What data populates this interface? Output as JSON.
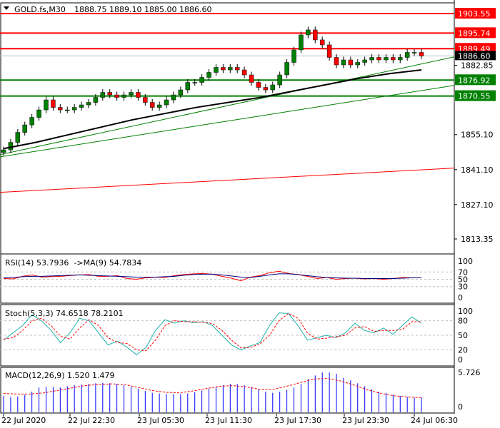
{
  "header": {
    "symbol": "GOLD.fs,M30",
    "ohlc": "1888.75 1889.10 1885.00 1886.60"
  },
  "colors": {
    "up": "#008000",
    "down": "#ff0000",
    "support": "#008000",
    "resistance": "#ff0000",
    "ma": "#000000"
  },
  "chart_data": [
    {
      "type": "candlestick",
      "title": "GOLD.fs,M30",
      "note": "open = previous close",
      "close": [
        1849,
        1852,
        1856,
        1859,
        1862,
        1865,
        1869,
        1866,
        1865,
        1865,
        1866,
        1867,
        1868,
        1870,
        1872,
        1871,
        1870,
        1871,
        1872,
        1870,
        1868,
        1866,
        1867,
        1869,
        1871,
        1873,
        1876,
        1876,
        1878,
        1880,
        1882,
        1881,
        1882,
        1881,
        1879,
        1876,
        1874,
        1873,
        1875,
        1879,
        1884,
        1889,
        1895,
        1897,
        1893,
        1891,
        1886,
        1883,
        1885,
        1883,
        1884,
        1885,
        1886,
        1885,
        1886,
        1885,
        1886,
        1888,
        1888,
        1886.6
      ],
      "ma": [
        1849.5,
        1852,
        1855,
        1858,
        1861,
        1863.5,
        1866,
        1868,
        1870,
        1872.5,
        1875,
        1877.5,
        1879.5,
        1881
      ],
      "ylim": [
        1809,
        1908
      ],
      "y_ticks": [
        "1882.85",
        "1855.10",
        "1841.10",
        "1827.10",
        "1813.35"
      ],
      "hlines": [
        {
          "label": "1903.55",
          "value": 1903.55,
          "color": "#ff0000"
        },
        {
          "label": "1895.74",
          "value": 1895.74,
          "color": "#ff0000"
        },
        {
          "label": "1889.49",
          "value": 1889.49,
          "color": "#ff0000"
        },
        {
          "label": "1876.92",
          "value": 1876.92,
          "color": "#008000"
        },
        {
          "label": "1870.55",
          "value": 1870.55,
          "color": "#008000"
        }
      ],
      "current_price": "1886.60",
      "trendlines": [
        {
          "from": 1847.1,
          "to": 1886.2,
          "color": "#008000"
        },
        {
          "from": 1846.2,
          "to": 1874.8,
          "color": "#008000"
        },
        {
          "from": 1832.0,
          "to": 1841.7,
          "color": "#ff0000"
        }
      ],
      "x_ticks": [
        "22 Jul 2020",
        "22 Jul 22:30",
        "23 Jul 05:30",
        "23 Jul 11:30",
        "23 Jul 17:30",
        "23 Jul 23:30",
        "24 Jul 06:30"
      ]
    },
    {
      "type": "line",
      "title": "RSI(14) 53.7936  ->MA(9) 54.7834",
      "ylim": [
        0,
        100
      ],
      "levels": [
        "100",
        "70",
        "50",
        "30",
        "0"
      ],
      "series": [
        {
          "name": "RSI",
          "color": "#ff0000",
          "values": [
            52,
            51,
            58,
            62,
            56,
            57,
            58,
            60,
            62,
            63,
            58,
            58,
            60,
            52,
            50,
            54,
            56,
            55,
            60,
            63,
            65,
            66,
            64,
            58,
            53,
            46,
            56,
            60,
            68,
            72,
            66,
            63,
            58,
            52,
            55,
            50,
            52,
            53,
            51,
            52,
            50,
            52,
            55,
            54,
            54
          ]
        },
        {
          "name": "MA",
          "color": "#000080",
          "values": [
            54,
            55,
            57,
            58,
            58,
            59,
            60,
            61,
            62,
            61,
            60,
            59,
            58,
            57,
            56,
            56,
            56,
            57,
            58,
            61,
            63,
            64,
            64,
            62,
            59,
            56,
            55,
            58,
            62,
            65,
            65,
            63,
            60,
            57,
            55,
            54,
            53,
            53,
            52,
            52,
            52,
            52,
            53,
            54,
            54
          ]
        }
      ]
    },
    {
      "type": "line",
      "title": "Stoch(5,3,3) 74.6518 78.2101",
      "ylim": [
        0,
        100
      ],
      "levels": [
        "100",
        "80",
        "50",
        "20",
        "0"
      ],
      "series": [
        {
          "name": "Main",
          "color": "#20b2aa",
          "values": [
            40,
            55,
            70,
            92,
            80,
            60,
            35,
            55,
            85,
            80,
            55,
            30,
            38,
            25,
            10,
            25,
            60,
            82,
            75,
            80,
            76,
            78,
            70,
            50,
            30,
            20,
            28,
            35,
            70,
            96,
            95,
            70,
            40,
            45,
            50,
            45,
            55,
            75,
            60,
            55,
            65,
            52,
            70,
            88,
            75
          ]
        },
        {
          "name": "Signal",
          "color": "#ff0000",
          "values": [
            42,
            45,
            60,
            80,
            85,
            70,
            48,
            42,
            65,
            82,
            70,
            45,
            35,
            33,
            20,
            18,
            40,
            70,
            80,
            78,
            78,
            77,
            74,
            60,
            40,
            24,
            25,
            32,
            50,
            80,
            95,
            85,
            55,
            42,
            44,
            47,
            50,
            65,
            68,
            58,
            60,
            60,
            62,
            78,
            78
          ]
        }
      ]
    },
    {
      "type": "bar",
      "title": "MACD(12,26,9) 1.520 1.479",
      "ylim": [
        0,
        5.726
      ],
      "levels": [
        "5.726",
        "0"
      ],
      "series": [
        {
          "name": "MACD",
          "color": "#0000ff",
          "values": [
            1.8,
            1.6,
            1.7,
            2.0,
            2.5,
            3.2,
            3.3,
            3.3,
            3.2,
            3.4,
            3.6,
            3.7,
            3.8,
            3.9,
            4.0,
            3.9,
            3.8,
            3.6,
            3.3,
            3.0,
            2.6,
            2.3,
            2.2,
            2.1,
            2.1,
            2.1,
            2.2,
            2.4,
            2.7,
            3.0,
            3.3,
            3.6,
            3.8,
            3.8,
            3.6,
            3.3,
            2.9,
            2.5,
            2.3,
            2.5,
            2.8,
            3.2,
            3.8,
            4.6,
            5.2,
            5.7,
            5.7,
            5.5,
            4.8,
            4.4,
            3.9,
            3.4,
            2.9,
            2.5,
            2.3,
            2.0,
            1.8,
            1.6,
            1.5,
            1.5
          ]
        },
        {
          "name": "Signal",
          "color": "#ff0000",
          "values": [
            2.2,
            2.1,
            2.1,
            2.3,
            2.7,
            3.1,
            3.5,
            3.7,
            3.8,
            3.7,
            3.2,
            2.7,
            2.4,
            2.3,
            2.6,
            3.0,
            3.4,
            3.5,
            3.3,
            2.9,
            2.9,
            3.4,
            4.0,
            4.6,
            4.7,
            4.3,
            3.6,
            2.8,
            2.2,
            1.8,
            1.6,
            1.5
          ]
        }
      ]
    }
  ]
}
